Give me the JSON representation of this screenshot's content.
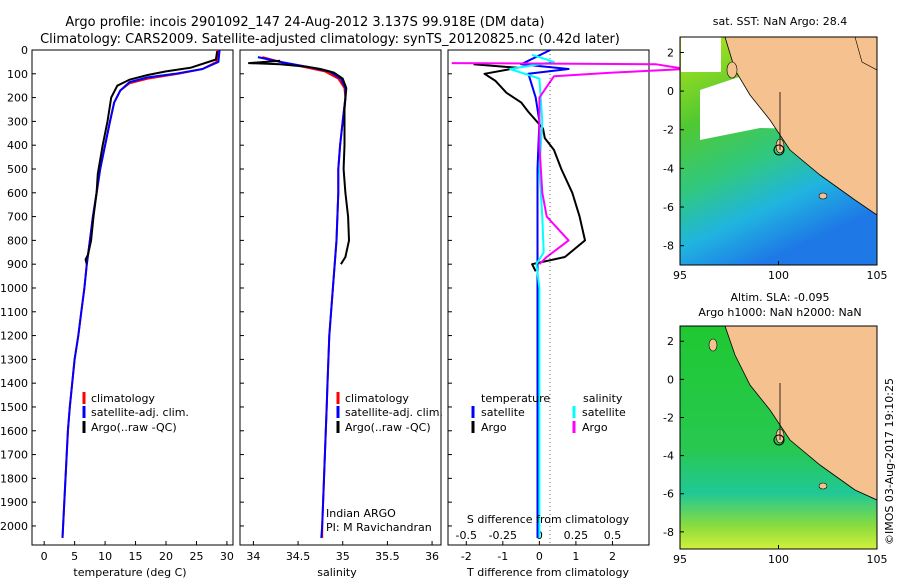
{
  "header": {
    "title_line1": "Argo profile: incois 2901092_147 24-Aug-2012 3.137S 99.918E (DM data)",
    "title_line2": "Climatology: CARS2009. Satellite-adjusted climatology: synTS_20120825.nc (0.42d later)"
  },
  "colors": {
    "climatology": "#ff0000",
    "satellite": "#0000ff",
    "argo": "#000000",
    "sal_satellite": "#00ffff",
    "sal_argo": "#ff00ff",
    "land": "#f5c28f"
  },
  "chart_data": [
    {
      "id": "temperature",
      "type": "line",
      "xlabel": "temperature (deg C)",
      "ylabel": "",
      "xlim": [
        -2,
        31
      ],
      "ylim": [
        2080,
        0
      ],
      "xticks": [
        "0",
        "5",
        "10",
        "15",
        "20",
        "25",
        "30"
      ],
      "xtick_values": [
        0,
        5,
        10,
        15,
        20,
        25,
        30
      ],
      "yticks": [
        "0",
        "100",
        "200",
        "300",
        "400",
        "500",
        "600",
        "700",
        "800",
        "900",
        "1000",
        "1100",
        "1200",
        "1300",
        "1400",
        "1500",
        "1600",
        "1700",
        "1800",
        "1900",
        "2000"
      ],
      "ytick_values": [
        0,
        100,
        200,
        300,
        400,
        500,
        600,
        700,
        800,
        900,
        1000,
        1100,
        1200,
        1300,
        1400,
        1500,
        1600,
        1700,
        1800,
        1900,
        2000
      ],
      "legend": [
        "climatology",
        "satellite-adj. clim.",
        "Argo(..raw -QC)"
      ],
      "legend_position": "lower-center",
      "series": [
        {
          "name": "climatology",
          "color": "#ff0000",
          "points": [
            [
              28.5,
              0
            ],
            [
              28.3,
              50
            ],
            [
              26,
              80
            ],
            [
              22,
              100
            ],
            [
              17,
              120
            ],
            [
              14,
              140
            ],
            [
              12.5,
              170
            ],
            [
              11.5,
              220
            ],
            [
              10.8,
              300
            ],
            [
              10,
              400
            ],
            [
              9.2,
              500
            ],
            [
              8.6,
              600
            ],
            [
              8.0,
              700
            ],
            [
              7.5,
              800
            ],
            [
              7.0,
              900
            ],
            [
              6.6,
              1000
            ],
            [
              6.1,
              1100
            ],
            [
              5.6,
              1200
            ],
            [
              5.0,
              1300
            ],
            [
              4.6,
              1400
            ],
            [
              4.2,
              1500
            ],
            [
              3.9,
              1600
            ],
            [
              3.7,
              1700
            ],
            [
              3.5,
              1800
            ],
            [
              3.3,
              1900
            ],
            [
              3.1,
              2000
            ],
            [
              3.0,
              2050
            ]
          ]
        },
        {
          "name": "satellite-adj. clim.",
          "color": "#0000ff",
          "points": [
            [
              28.8,
              0
            ],
            [
              28.6,
              50
            ],
            [
              26,
              80
            ],
            [
              21.5,
              100
            ],
            [
              17,
              115
            ],
            [
              14,
              135
            ],
            [
              12.5,
              170
            ],
            [
              11.5,
              220
            ],
            [
              10.8,
              300
            ],
            [
              10,
              400
            ],
            [
              9.2,
              500
            ],
            [
              8.6,
              600
            ],
            [
              8.0,
              700
            ],
            [
              7.5,
              800
            ],
            [
              7.0,
              900
            ],
            [
              6.6,
              1000
            ],
            [
              6.1,
              1100
            ],
            [
              5.6,
              1200
            ],
            [
              5.0,
              1300
            ],
            [
              4.6,
              1400
            ],
            [
              4.2,
              1500
            ],
            [
              3.9,
              1600
            ],
            [
              3.7,
              1700
            ],
            [
              3.5,
              1800
            ],
            [
              3.3,
              1900
            ],
            [
              3.1,
              2000
            ],
            [
              3.0,
              2050
            ]
          ]
        },
        {
          "name": "Argo(..raw -QC)",
          "color": "#000000",
          "points": [
            [
              28.4,
              5
            ],
            [
              28.2,
              40
            ],
            [
              24,
              75
            ],
            [
              20,
              90
            ],
            [
              17,
              105
            ],
            [
              14,
              125
            ],
            [
              12,
              150
            ],
            [
              11,
              200
            ],
            [
              10.4,
              300
            ],
            [
              9.6,
              400
            ],
            [
              8.8,
              520
            ],
            [
              8.6,
              600
            ],
            [
              8.1,
              700
            ],
            [
              7.7,
              800
            ],
            [
              7.2,
              860
            ],
            [
              6.8,
              880
            ],
            [
              7.0,
              900
            ]
          ]
        }
      ]
    },
    {
      "id": "salinity",
      "type": "line",
      "xlabel": "salinity",
      "xlim": [
        33.85,
        36.1
      ],
      "ylim": [
        2080,
        0
      ],
      "xticks": [
        "34",
        "34.5",
        "35",
        "35.5",
        "36"
      ],
      "xtick_values": [
        34,
        34.5,
        35,
        35.5,
        36
      ],
      "legend": [
        "climatology",
        "satellite-adj. clim.",
        "Argo(..raw -QC)"
      ],
      "legend_position": "lower-center",
      "annotation_line1": "Indian ARGO",
      "annotation_line2": "PI: M Ravichandran",
      "series": [
        {
          "name": "climatology",
          "color": "#ff0000",
          "points": [
            [
              34.1,
              30
            ],
            [
              34.3,
              50
            ],
            [
              34.55,
              70
            ],
            [
              34.8,
              90
            ],
            [
              34.95,
              120
            ],
            [
              35.02,
              160
            ],
            [
              35.03,
              200
            ],
            [
              35.0,
              300
            ],
            [
              34.97,
              400
            ],
            [
              34.95,
              500
            ],
            [
              34.95,
              600
            ],
            [
              34.94,
              700
            ],
            [
              34.93,
              800
            ],
            [
              34.91,
              900
            ],
            [
              34.89,
              1000
            ],
            [
              34.87,
              1100
            ],
            [
              34.85,
              1200
            ],
            [
              34.84,
              1300
            ],
            [
              34.83,
              1400
            ],
            [
              34.82,
              1500
            ],
            [
              34.81,
              1600
            ],
            [
              34.8,
              1700
            ],
            [
              34.79,
              1800
            ],
            [
              34.78,
              1900
            ],
            [
              34.77,
              2000
            ],
            [
              34.77,
              2050
            ]
          ]
        },
        {
          "name": "satellite-adj. clim.",
          "color": "#0000ff",
          "points": [
            [
              34.05,
              30
            ],
            [
              34.3,
              50
            ],
            [
              34.6,
              70
            ],
            [
              34.85,
              90
            ],
            [
              34.98,
              120
            ],
            [
              35.03,
              160
            ],
            [
              35.03,
              200
            ],
            [
              35.0,
              300
            ],
            [
              34.97,
              400
            ],
            [
              34.95,
              500
            ],
            [
              34.95,
              600
            ],
            [
              34.94,
              700
            ],
            [
              34.93,
              800
            ],
            [
              34.91,
              900
            ],
            [
              34.89,
              1000
            ],
            [
              34.87,
              1100
            ],
            [
              34.85,
              1200
            ],
            [
              34.84,
              1300
            ],
            [
              34.83,
              1400
            ],
            [
              34.82,
              1500
            ],
            [
              34.81,
              1600
            ],
            [
              34.8,
              1700
            ],
            [
              34.79,
              1800
            ],
            [
              34.78,
              1900
            ],
            [
              34.77,
              2000
            ],
            [
              34.76,
              2050
            ]
          ]
        },
        {
          "name": "Argo(..raw -QC)",
          "color": "#000000",
          "points": [
            [
              34.3,
              45
            ],
            [
              33.95,
              55
            ],
            [
              34.3,
              60
            ],
            [
              34.6,
              70
            ],
            [
              34.75,
              80
            ],
            [
              34.9,
              95
            ],
            [
              35.0,
              120
            ],
            [
              35.04,
              160
            ],
            [
              35.02,
              250
            ],
            [
              35.02,
              400
            ],
            [
              35.01,
              500
            ],
            [
              35.03,
              600
            ],
            [
              35.06,
              700
            ],
            [
              35.07,
              800
            ],
            [
              35.03,
              870
            ],
            [
              34.98,
              900
            ]
          ]
        }
      ]
    },
    {
      "id": "difference",
      "type": "line",
      "xlabel": "T difference from climatology",
      "xlabel_top": "S difference from climatology",
      "xlim": [
        -2.5,
        3.0
      ],
      "ylim": [
        2080,
        0
      ],
      "xticks": [
        "-2",
        "-1",
        "0",
        "1",
        "2"
      ],
      "xtick_values": [
        -2,
        -1,
        0,
        1,
        2
      ],
      "xticks_top": [
        "-0.5",
        "-0.25",
        "0",
        "0.25",
        "0.5"
      ],
      "legend_left_title": "temperature",
      "legend_right_title": "salinity",
      "legend_left": [
        "satellite",
        "Argo"
      ],
      "legend_right": [
        "satellite",
        "Argo"
      ],
      "series": [
        {
          "name": "T satellite",
          "color": "#0000ff",
          "points": [
            [
              0.3,
              0
            ],
            [
              -0.5,
              60
            ],
            [
              0.8,
              80
            ],
            [
              -0.3,
              100
            ],
            [
              -0.1,
              200
            ],
            [
              0,
              300
            ],
            [
              -0.05,
              500
            ],
            [
              -0.05,
              700
            ],
            [
              -0.05,
              900
            ],
            [
              -0.05,
              1200
            ],
            [
              -0.05,
              1600
            ],
            [
              -0.05,
              2000
            ],
            [
              -0.05,
              2050
            ]
          ]
        },
        {
          "name": "T Argo",
          "color": "#000000",
          "points": [
            [
              -1.8,
              60
            ],
            [
              -0.6,
              75
            ],
            [
              -1.5,
              100
            ],
            [
              -1.2,
              130
            ],
            [
              -0.9,
              180
            ],
            [
              -0.5,
              220
            ],
            [
              -0.3,
              260
            ],
            [
              0.1,
              330
            ],
            [
              0.15,
              370
            ],
            [
              0.4,
              420
            ],
            [
              0.6,
              500
            ],
            [
              0.9,
              600
            ],
            [
              1.1,
              700
            ],
            [
              1.25,
              800
            ],
            [
              0.7,
              870
            ],
            [
              -0.2,
              900
            ],
            [
              -0.1,
              930
            ]
          ]
        },
        {
          "name": "S satellite",
          "color": "#00ffff",
          "points": [
            [
              -0.05,
              20
            ],
            [
              0.1,
              50
            ],
            [
              -0.2,
              80
            ],
            [
              0,
              120
            ],
            [
              0.02,
              300
            ],
            [
              0,
              500
            ],
            [
              0.02,
              700
            ],
            [
              0.03,
              850
            ],
            [
              -0.02,
              900
            ],
            [
              0,
              1000
            ],
            [
              0,
              1500
            ],
            [
              0,
              2050
            ]
          ]
        },
        {
          "name": "S Argo",
          "color": "#ff00ff",
          "points": [
            [
              -0.6,
              55
            ],
            [
              0.8,
              60
            ],
            [
              1.0,
              80
            ],
            [
              0.5,
              95
            ],
            [
              0.1,
              110
            ],
            [
              0,
              200
            ],
            [
              0,
              400
            ],
            [
              0.02,
              600
            ],
            [
              0.05,
              700
            ],
            [
              0.2,
              800
            ],
            [
              0.05,
              870
            ],
            [
              0,
              900
            ]
          ]
        }
      ]
    }
  ],
  "maps": {
    "sst_title": "sat. SST: NaN Argo: 28.4",
    "sla_title_line1": "Altim. SLA: -0.095",
    "sla_title_line2": "Argo h1000: NaN h2000: NaN",
    "yticks": [
      "2",
      "0",
      "-2",
      "-4",
      "-6",
      "-8"
    ],
    "xticks": [
      "95",
      "100",
      "105"
    ]
  },
  "footer": {
    "credit": "©IMOS 03-Aug-2017 19:10:25"
  }
}
